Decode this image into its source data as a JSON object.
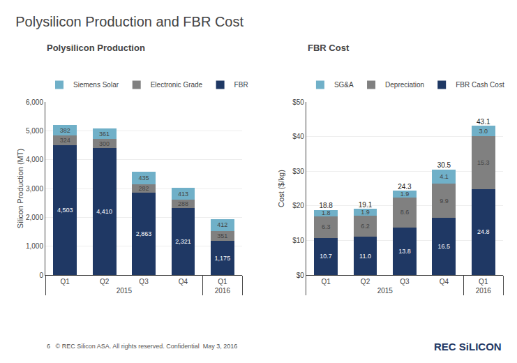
{
  "title": "Polysilicon Production and FBR Cost",
  "annotations": [
    "6   © REC Silicon ASA. All rights reserved. Confidential  May 3, 2016",
    "REC SiLICON"
  ],
  "chart_data": [
    {
      "type": "bar",
      "title": "Polysilicon Production",
      "ylabel": "Silicon Production (MT)",
      "stacked": true,
      "grid": true,
      "legend": "upper left",
      "data_labels": true,
      "categories": [
        [
          "2015",
          "Q1"
        ],
        [
          "2015",
          "Q2"
        ],
        [
          "2015",
          "Q3"
        ],
        [
          "2015",
          "Q4"
        ],
        [
          "2016",
          "Q1"
        ]
      ],
      "series": [
        {
          "name": "FBR",
          "color": "#1f3864",
          "values": [
            4503,
            4410,
            2863,
            2321,
            1175
          ],
          "value_labels": [
            "4,503",
            "4,410",
            "2,863",
            "2,321",
            "1,175"
          ]
        },
        {
          "name": "Electronic Grade",
          "color": "#808080",
          "values": [
            324,
            300,
            282,
            288,
            351
          ]
        },
        {
          "name": "Siemens Solar",
          "color": "#70b0c8",
          "values": [
            382,
            361,
            435,
            413,
            412
          ]
        }
      ],
      "ylim": [
        0,
        6000
      ],
      "yticks": [
        0,
        {
          "value": 1000,
          "label": "1,000"
        },
        {
          "value": 2000,
          "label": "2,000"
        },
        {
          "value": 3000,
          "label": "3,000"
        },
        {
          "value": 4000,
          "label": "4,000"
        },
        {
          "value": 5000,
          "label": "5,000"
        },
        {
          "value": 6000,
          "label": "6,000"
        }
      ]
    },
    {
      "type": "bar",
      "title": "FBR Cost",
      "ylabel": "Cost ($/kg)",
      "stacked": true,
      "grid": true,
      "legend": "upper left",
      "data_labels": true,
      "categories": [
        [
          "2015",
          "Q1"
        ],
        [
          "2015",
          "Q2"
        ],
        [
          "2015",
          "Q3"
        ],
        [
          "2015",
          "Q4"
        ],
        [
          "2016",
          "Q1"
        ]
      ],
      "series": [
        {
          "name": "FBR Cash Cost",
          "color": "#1f3864",
          "values": [
            10.7,
            11.0,
            13.8,
            16.5,
            24.8
          ],
          "value_labels": [
            "10.7",
            "11.0",
            "13.8",
            "16.5",
            "24.8"
          ]
        },
        {
          "name": "Depreciation",
          "color": "#808080",
          "values": [
            6.3,
            6.2,
            8.6,
            9.9,
            15.3
          ]
        },
        {
          "name": "SG&A",
          "color": "#70b0c8",
          "values": [
            1.8,
            1.9,
            1.9,
            4.1,
            3.0
          ],
          "value_labels": [
            "1.8",
            "1.9",
            "1.9",
            "4.1",
            "3.0"
          ]
        }
      ],
      "totals": [
        18.8,
        19.1,
        24.3,
        30.5,
        43.1
      ],
      "ylim": [
        0,
        50
      ],
      "yticks": [
        {
          "value": 0,
          "label": "$0"
        },
        {
          "value": 10,
          "label": "$10"
        },
        {
          "value": 20,
          "label": "$20"
        },
        {
          "value": 30,
          "label": "$30"
        },
        {
          "value": 40,
          "label": "$40"
        },
        {
          "value": 50,
          "label": "$50"
        }
      ]
    }
  ]
}
